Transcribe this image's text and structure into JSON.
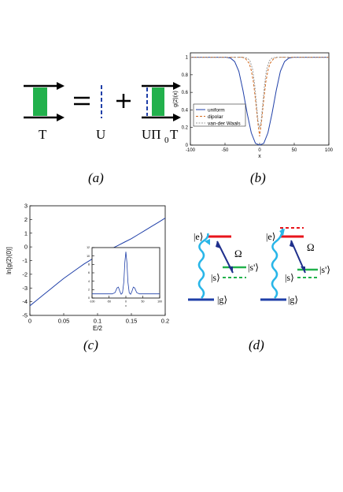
{
  "panel_labels": {
    "a": "(a)",
    "b": "(b)",
    "c": "(c)",
    "d": "(d)"
  },
  "diagram_a": {
    "labels": [
      "T",
      "U",
      "UΠ",
      "0",
      "T"
    ],
    "operators": [
      "=",
      "+"
    ],
    "colors": {
      "fill": "#22b14c",
      "dash": "#1f3fa8"
    }
  },
  "chart_data": [
    {
      "id": "b",
      "type": "line",
      "ylabel": "g(2)(x)",
      "xlabel": "x",
      "xlim": [
        -100,
        100
      ],
      "ylim": [
        0,
        1.05
      ],
      "xticks": [
        "-100",
        "-50",
        "0",
        "50",
        "100"
      ],
      "yticks": [
        "0",
        "0.2",
        "0.4",
        "0.6",
        "0.8",
        "1"
      ],
      "legend": "top-left",
      "series": [
        {
          "name": "uniform",
          "color": "#1f3fa8",
          "x": [
            -100,
            -48,
            -42,
            -36,
            -30,
            -24,
            -18,
            -12,
            -6,
            0,
            6,
            12,
            18,
            24,
            30,
            36,
            42,
            48,
            100
          ],
          "y": [
            1,
            1,
            0.99,
            0.95,
            0.84,
            0.62,
            0.36,
            0.14,
            0.02,
            0,
            0.02,
            0.14,
            0.36,
            0.62,
            0.84,
            0.95,
            0.99,
            1,
            1
          ]
        },
        {
          "name": "dipolar",
          "color": "#d2691e",
          "x": [
            -100,
            -25,
            -20,
            -15,
            -12,
            -9,
            -6,
            -3,
            0,
            3,
            6,
            9,
            12,
            15,
            20,
            25,
            100
          ],
          "y": [
            1,
            1,
            0.98,
            0.93,
            0.85,
            0.72,
            0.52,
            0.28,
            0.1,
            0.28,
            0.52,
            0.72,
            0.85,
            0.93,
            0.98,
            1,
            1
          ]
        },
        {
          "name": "van-der Waals",
          "color": "#999999",
          "x": [
            -100,
            -24,
            -18,
            -14,
            -10,
            -7,
            -4,
            -2,
            0,
            2,
            4,
            7,
            10,
            14,
            18,
            24,
            100
          ],
          "y": [
            1,
            1,
            0.99,
            0.96,
            0.86,
            0.68,
            0.42,
            0.26,
            0.2,
            0.26,
            0.42,
            0.68,
            0.86,
            0.96,
            0.99,
            1,
            1
          ]
        }
      ]
    },
    {
      "id": "c",
      "type": "line",
      "ylabel": "ln[g(2)(0)]",
      "xlabel": "E/2",
      "xlim": [
        0,
        0.2
      ],
      "ylim": [
        -5,
        3
      ],
      "xticks": [
        "0",
        "0.05",
        "0.1",
        "0.15",
        "0.2"
      ],
      "yticks": [
        "-5",
        "-4",
        "-3",
        "-2",
        "-1",
        "0",
        "1",
        "2",
        "3"
      ],
      "series": [
        {
          "name": "",
          "color": "#1f3fa8",
          "x": [
            0,
            0.01,
            0.02,
            0.03,
            0.04,
            0.05,
            0.06,
            0.07,
            0.08,
            0.09,
            0.1,
            0.11,
            0.12,
            0.13,
            0.14,
            0.15,
            0.16,
            0.17,
            0.18,
            0.19,
            0.2
          ],
          "y": [
            -4.3,
            -3.9,
            -3.5,
            -3.1,
            -2.7,
            -2.3,
            -1.95,
            -1.6,
            -1.25,
            -0.95,
            -0.65,
            -0.4,
            -0.15,
            0.1,
            0.35,
            0.6,
            0.9,
            1.2,
            1.5,
            1.8,
            2.1
          ]
        }
      ],
      "inset": {
        "type": "line",
        "xlim": [
          -100,
          100
        ],
        "ylim": [
          0,
          12
        ],
        "xticks": [
          "-100",
          "-50",
          "0",
          "50",
          "100"
        ],
        "yticks": [
          "0",
          "2",
          "4",
          "6",
          "8",
          "10",
          "12"
        ],
        "xlabel": "x",
        "series": [
          {
            "name": "",
            "color": "#1f3fa8",
            "x": [
              -100,
              -40,
              -32,
              -26,
              -22,
              -18,
              -14,
              -10,
              -6,
              -3,
              0,
              3,
              6,
              10,
              14,
              18,
              22,
              26,
              32,
              40,
              100
            ],
            "y": [
              1,
              1,
              1.3,
              2.4,
              2.6,
              1.6,
              0.9,
              1.2,
              3.8,
              8.5,
              11,
              8.5,
              3.8,
              1.2,
              0.9,
              1.6,
              2.6,
              2.4,
              1.3,
              1,
              1
            ]
          }
        ]
      }
    }
  ],
  "diagram_d": {
    "left": {
      "e": "|e⟩",
      "s": "|s⟩",
      "sprime": "|s'⟩",
      "g": "|g⟩",
      "omega": "Ω"
    },
    "right": {
      "e": "|e⟩",
      "s": "|s⟩",
      "sprime": "|s'⟩",
      "g": "|g⟩",
      "omega": "Ω"
    },
    "colors": {
      "excited": "#e8141b",
      "storage": "#22b14c",
      "ground": "#1f3fa8",
      "photon": "#29b6e8",
      "coupling": "#1f2f8c"
    }
  }
}
